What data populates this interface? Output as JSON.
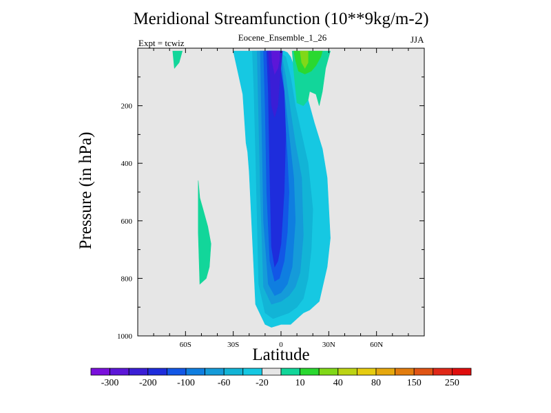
{
  "chart_data": {
    "type": "contour",
    "title": "Meridional Streamfunction (10**9kg/m-2)",
    "subtitle": "Eocene_Ensemble_1_26",
    "left_string": "Expt = tcwiz",
    "right_string": "JJA",
    "xlabel": "Latitude",
    "ylabel": "Pressure (in hPa)",
    "xlim": [
      -90,
      90
    ],
    "ylim": [
      1000,
      0
    ],
    "y_reversed": true,
    "grid": false,
    "background_color": "#e6e6e6",
    "x_ticks": [
      {
        "value": -60,
        "label": "60S"
      },
      {
        "value": -30,
        "label": "30S"
      },
      {
        "value": 0,
        "label": "0"
      },
      {
        "value": 30,
        "label": "30N"
      },
      {
        "value": 60,
        "label": "60N"
      }
    ],
    "y_ticks": [
      {
        "value": 200,
        "label": "200"
      },
      {
        "value": 400,
        "label": "400"
      },
      {
        "value": 600,
        "label": "600"
      },
      {
        "value": 800,
        "label": "800"
      },
      {
        "value": 1000,
        "label": "1000"
      }
    ],
    "colorbar": {
      "colors": [
        "#7a10dc",
        "#5c16d8",
        "#3a1ed6",
        "#1e2ddc",
        "#1257e6",
        "#0f7ee0",
        "#159bd9",
        "#12b4d6",
        "#16c8e2",
        "#e6e6e6",
        "#12d69a",
        "#2ad830",
        "#80d818",
        "#bcd414",
        "#e6cc10",
        "#e6a80e",
        "#e27c0e",
        "#e05414",
        "#e02818",
        "#e00e0e"
      ],
      "tick_labels": [
        "-300",
        "-200",
        "-100",
        "-60",
        "-20",
        "10",
        "40",
        "80",
        "150",
        "250"
      ]
    },
    "contours": [
      {
        "name": "sh-cyan-cell",
        "color": "#16c8e2",
        "lat": [
          -30,
          -28,
          -24,
          -22,
          -21,
          -20,
          -16,
          -10,
          -6,
          0,
          6,
          10,
          14,
          18,
          24,
          29,
          31,
          29,
          26,
          21,
          16,
          12,
          8,
          6,
          4,
          2,
          1,
          -2,
          -10,
          -20,
          -30
        ],
        "p": [
          10,
          60,
          160,
          330,
          360,
          430,
          890,
          960,
          970,
          960,
          960,
          940,
          920,
          910,
          880,
          760,
          660,
          450,
          350,
          260,
          160,
          100,
          60,
          30,
          15,
          10,
          10,
          10,
          10,
          10,
          10
        ]
      },
      {
        "name": "sh-blue-1",
        "color": "#12b4d6",
        "lat": [
          -18,
          -17,
          -16,
          -14,
          -10,
          -5,
          0,
          5,
          10,
          14,
          17,
          19,
          20,
          17,
          13,
          9,
          6,
          3,
          -2,
          -8,
          -14,
          -18
        ],
        "p": [
          10,
          150,
          360,
          820,
          920,
          940,
          930,
          920,
          900,
          870,
          800,
          700,
          560,
          400,
          300,
          200,
          100,
          30,
          10,
          10,
          10,
          10
        ]
      },
      {
        "name": "sh-blue-2",
        "color": "#159bd9",
        "lat": [
          -15,
          -14,
          -13,
          -11,
          -6,
          0,
          5,
          9,
          12,
          14,
          13,
          9,
          6,
          3,
          0,
          -4,
          -10,
          -15
        ],
        "p": [
          10,
          250,
          500,
          830,
          890,
          880,
          860,
          830,
          780,
          650,
          450,
          330,
          220,
          100,
          10,
          10,
          10,
          10
        ]
      },
      {
        "name": "sh-blue-3",
        "color": "#0f7ee0",
        "lat": [
          -13,
          -12,
          -11,
          -8,
          -4,
          0,
          4,
          7,
          9,
          8,
          5,
          2,
          0,
          -4,
          -9,
          -13
        ],
        "p": [
          10,
          300,
          600,
          820,
          860,
          850,
          820,
          760,
          600,
          450,
          300,
          150,
          10,
          10,
          10,
          10
        ]
      },
      {
        "name": "sh-blue-4",
        "color": "#1257e6",
        "lat": [
          -11,
          -10,
          -9,
          -7,
          -4,
          -1,
          2,
          4,
          5,
          4,
          2,
          0,
          -1,
          -5,
          -8,
          -11
        ],
        "p": [
          10,
          200,
          500,
          740,
          810,
          800,
          740,
          640,
          500,
          380,
          200,
          100,
          10,
          10,
          10,
          10
        ]
      },
      {
        "name": "sh-core-100",
        "color": "#1e2ddc",
        "lat": [
          -9,
          -8,
          -7,
          -6,
          -4,
          -2,
          0,
          2,
          3,
          2,
          0,
          -1,
          -3,
          -6,
          -9
        ],
        "p": [
          10,
          150,
          450,
          690,
          760,
          740,
          680,
          500,
          300,
          150,
          80,
          30,
          10,
          10,
          10
        ]
      },
      {
        "name": "sh-core-200",
        "color": "#3a1ed6",
        "lat": [
          -8,
          -7,
          -6,
          -4,
          -2,
          -1,
          0,
          1,
          0,
          -2,
          -5,
          -8
        ],
        "p": [
          10,
          80,
          200,
          240,
          200,
          120,
          60,
          10,
          10,
          10,
          10,
          10
        ]
      },
      {
        "name": "sh-core-300",
        "color": "#5c16d8",
        "lat": [
          -6,
          -5.5,
          -4,
          -2,
          -1,
          -1,
          -3,
          -6
        ],
        "p": [
          10,
          50,
          90,
          70,
          40,
          10,
          10,
          10
        ]
      },
      {
        "name": "nh-cell-10",
        "color": "#12d69a",
        "lat": [
          7,
          8,
          10,
          14,
          17,
          18,
          22,
          24,
          26,
          28,
          31,
          27,
          7
        ],
        "p": [
          10,
          80,
          190,
          200,
          180,
          150,
          160,
          200,
          150,
          70,
          10,
          10,
          10
        ]
      },
      {
        "name": "nh-cell-40",
        "color": "#2ad830",
        "lat": [
          8,
          9,
          11,
          15,
          19,
          22,
          25,
          26,
          8
        ],
        "p": [
          10,
          40,
          80,
          90,
          80,
          60,
          30,
          10,
          10
        ]
      },
      {
        "name": "nh-cell-80",
        "color": "#80d818",
        "lat": [
          12,
          13,
          15,
          17,
          17,
          12
        ],
        "p": [
          10,
          50,
          70,
          50,
          10,
          10
        ]
      },
      {
        "name": "polar-sh-patch",
        "color": "#12d69a",
        "lat": [
          -68,
          -67,
          -64,
          -62,
          -68
        ],
        "p": [
          10,
          70,
          50,
          10,
          10
        ]
      },
      {
        "name": "sh-midlat-patch",
        "color": "#12d69a",
        "lat": [
          -52,
          -51,
          -49,
          -46,
          -44,
          -45,
          -47,
          -51,
          -52
        ],
        "p": [
          460,
          520,
          560,
          620,
          680,
          760,
          800,
          820,
          640
        ]
      }
    ]
  }
}
